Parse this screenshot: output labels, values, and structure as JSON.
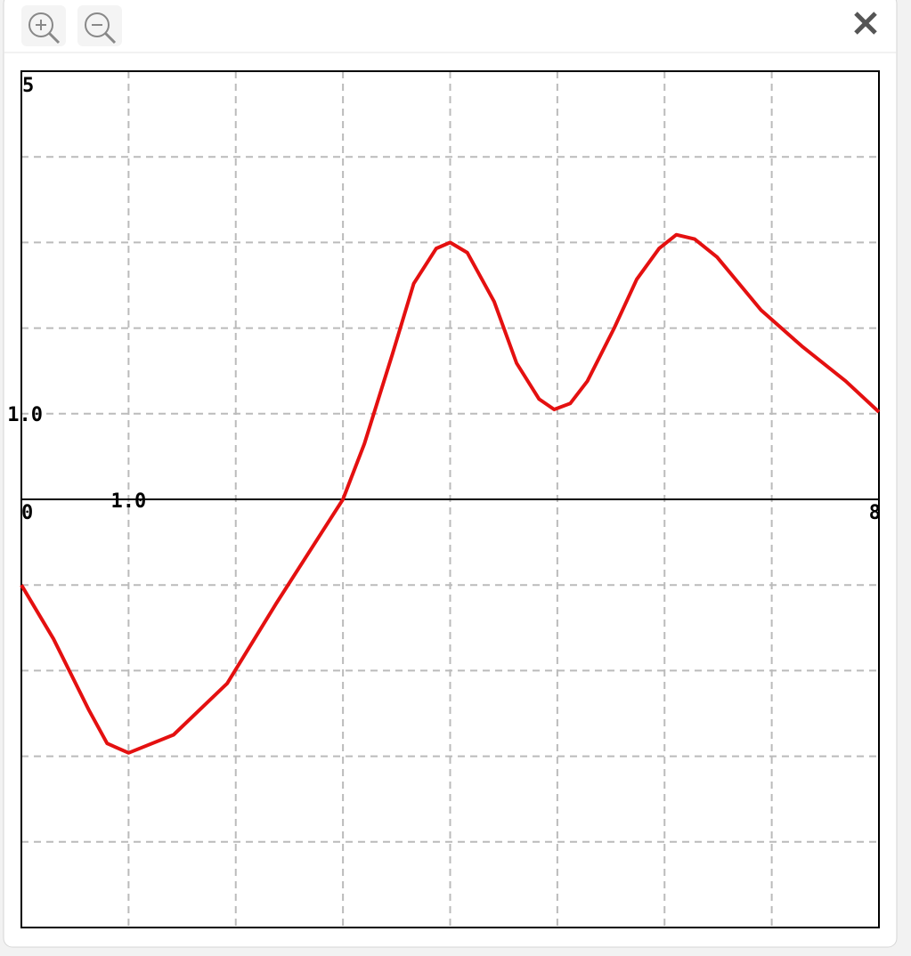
{
  "chart_data": {
    "type": "line",
    "x": [
      0,
      0.3,
      0.63,
      0.8,
      1,
      1.42,
      1.92,
      2.38,
      3,
      3.2,
      3.46,
      3.66,
      3.87,
      4,
      4.16,
      4.41,
      4.62,
      4.83,
      4.97,
      5.12,
      5.28,
      5.53,
      5.74,
      5.95,
      6.11,
      6.28,
      6.49,
      6.9,
      7.28,
      7.69,
      8
    ],
    "values": [
      -1.0,
      -1.63,
      -2.46,
      -2.85,
      -2.96,
      -2.75,
      -2.15,
      -1.21,
      0,
      0.65,
      1.69,
      2.52,
      2.93,
      3.0,
      2.88,
      2.31,
      1.59,
      1.17,
      1.05,
      1.12,
      1.38,
      2.0,
      2.57,
      2.93,
      3.09,
      3.04,
      2.83,
      2.21,
      1.79,
      1.38,
      1.02
    ],
    "color": "#e41010",
    "xlim": [
      0,
      8
    ],
    "ylim": [
      -5,
      5
    ],
    "xticks": [
      0,
      {
        "value": 1,
        "label": "1.0"
      },
      8
    ],
    "yticks": [
      {
        "value": 1,
        "label": "1.0"
      },
      5
    ],
    "xgrid": [
      1,
      2,
      3,
      4,
      5,
      6,
      7
    ],
    "ygrid": [
      -4,
      -3,
      -2,
      -1,
      1,
      2,
      3,
      4
    ],
    "grid": true
  }
}
